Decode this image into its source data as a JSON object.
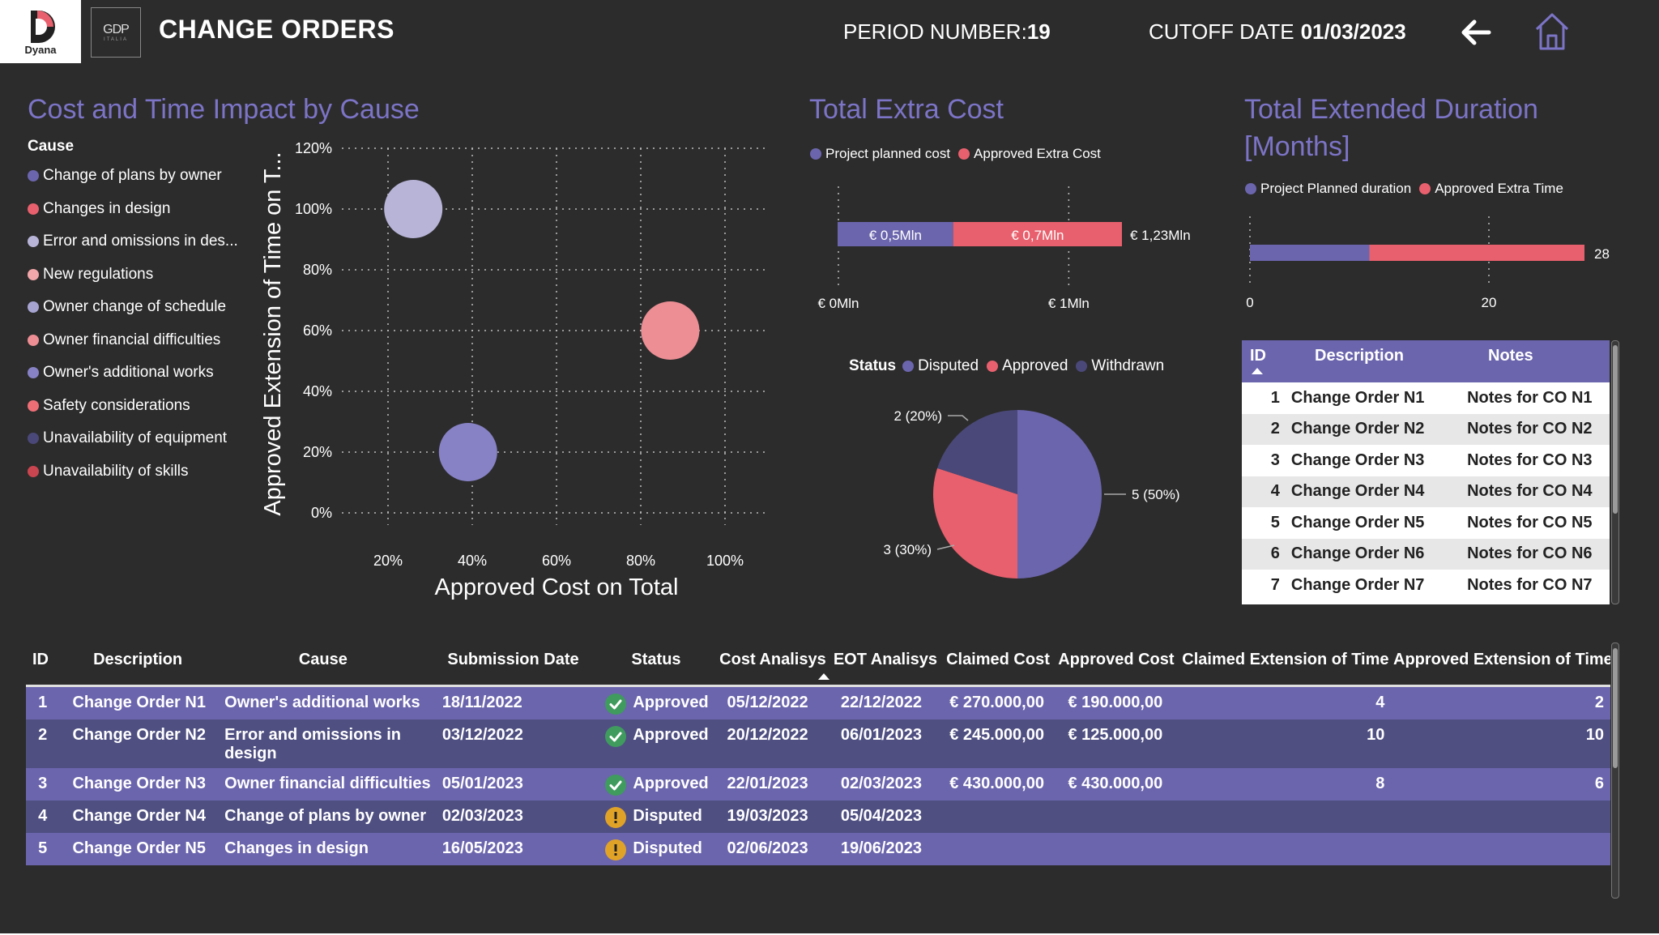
{
  "header": {
    "logo_text": "Dyana",
    "partner_logo": "GDP",
    "partner_sub": "ITALIA",
    "title": "CHANGE ORDERS",
    "period_label": "PERIOD NUMBER:",
    "period_value": "19",
    "cutoff_label": "CUTOFF DATE",
    "cutoff_value": "01/03/2023"
  },
  "icons": {
    "back": "arrow-left-icon",
    "home": "home-icon"
  },
  "colors": {
    "purple": "#6b65ad",
    "red": "#e8606d",
    "lavender": "#b7b4d8",
    "pink": "#ec8e94",
    "darkpurple": "#4a4878",
    "title": "#7c74c6"
  },
  "bubble_chart": {
    "title": "Cost and Time Impact by Cause",
    "legend_title": "Cause",
    "causes": [
      {
        "label": "Change of plans by owner",
        "color": "#6b65ad"
      },
      {
        "label": "Changes in design",
        "color": "#e8606d"
      },
      {
        "label": "Error and omissions in des...",
        "color": "#b7b4d8"
      },
      {
        "label": "New regulations",
        "color": "#f2a7aa"
      },
      {
        "label": "Owner change of schedule",
        "color": "#a7a4d2"
      },
      {
        "label": "Owner financial difficulties",
        "color": "#ec8e94"
      },
      {
        "label": "Owner's additional works",
        "color": "#8782c6"
      },
      {
        "label": "Safety considerations",
        "color": "#ee6e76"
      },
      {
        "label": "Unavailability of equipment",
        "color": "#4a4878"
      },
      {
        "label": "Unavailability of skills",
        "color": "#c9454f"
      }
    ],
    "xlabel": "Approved Cost on Total",
    "ylabel": "Approved Extension of Time on T...",
    "x_ticks": [
      "20%",
      "40%",
      "60%",
      "80%",
      "100%"
    ],
    "y_ticks": [
      "0%",
      "20%",
      "40%",
      "60%",
      "80%",
      "100%",
      "120%"
    ]
  },
  "extra_cost": {
    "title": "Total Extra Cost",
    "legend": [
      "Project planned cost",
      "Approved Extra Cost"
    ],
    "seg1_label": "€ 0,5Mln",
    "seg2_label": "€ 0,7Mln",
    "total_label": "€ 1,23Mln",
    "axis": [
      "€ 0Mln",
      "€ 1Mln"
    ]
  },
  "extended_duration": {
    "title_line1": "Total Extended Duration",
    "title_line2": "[Months]",
    "legend": [
      "Project Planned duration",
      "Approved Extra Time"
    ],
    "total_label": "28",
    "axis": [
      "0",
      "20"
    ]
  },
  "status_pie": {
    "legend_title": "Status",
    "legend": [
      "Disputed",
      "Approved",
      "Withdrawn"
    ],
    "label_disputed": "5 (50%)",
    "label_approved": "3 (30%)",
    "label_withdrawn": "2 (20%)"
  },
  "notes_table": {
    "headers": [
      "ID",
      "Description",
      "Notes"
    ],
    "rows": [
      [
        "1",
        "Change Order N1",
        "Notes for CO N1"
      ],
      [
        "2",
        "Change Order N2",
        "Notes for CO N2"
      ],
      [
        "3",
        "Change Order N3",
        "Notes for CO N3"
      ],
      [
        "4",
        "Change Order N4",
        "Notes for CO N4"
      ],
      [
        "5",
        "Change Order N5",
        "Notes for CO N5"
      ],
      [
        "6",
        "Change Order N6",
        "Notes for CO N6"
      ],
      [
        "7",
        "Change Order N7",
        "Notes for CO N7"
      ]
    ]
  },
  "main_table": {
    "headers": [
      "ID",
      "Description",
      "Cause",
      "Submission Date",
      "Status",
      "Cost Analisys",
      "EOT Analisys",
      "Claimed Cost",
      "Approved Cost",
      "Claimed Extension of Time",
      "Approved Extension of Time"
    ],
    "rows": [
      {
        "id": "1",
        "desc": "Change Order N1",
        "cause": "Owner's additional works",
        "sub": "18/11/2022",
        "status": "Approved",
        "cost_an": "05/12/2022",
        "eot_an": "22/12/2022",
        "claimed": "€ 270.000,00",
        "approved": "€ 190.000,00",
        "claimed_eot": "4",
        "approved_eot": "2"
      },
      {
        "id": "2",
        "desc": "Change Order N2",
        "cause": "Error and omissions in design",
        "sub": "03/12/2022",
        "status": "Approved",
        "cost_an": "20/12/2022",
        "eot_an": "06/01/2023",
        "claimed": "€ 245.000,00",
        "approved": "€ 125.000,00",
        "claimed_eot": "10",
        "approved_eot": "10"
      },
      {
        "id": "3",
        "desc": "Change Order N3",
        "cause": "Owner financial difficulties",
        "sub": "05/01/2023",
        "status": "Approved",
        "cost_an": "22/01/2023",
        "eot_an": "02/03/2023",
        "claimed": "€ 430.000,00",
        "approved": "€ 430.000,00",
        "claimed_eot": "8",
        "approved_eot": "6"
      },
      {
        "id": "4",
        "desc": "Change Order N4",
        "cause": "Change of plans by owner",
        "sub": "02/03/2023",
        "status": "Disputed",
        "cost_an": "19/03/2023",
        "eot_an": "05/04/2023",
        "claimed": "",
        "approved": "",
        "claimed_eot": "",
        "approved_eot": ""
      },
      {
        "id": "5",
        "desc": "Change Order N5",
        "cause": "Changes in design",
        "sub": "16/05/2023",
        "status": "Disputed",
        "cost_an": "02/06/2023",
        "eot_an": "19/06/2023",
        "claimed": "",
        "approved": "",
        "claimed_eot": "",
        "approved_eot": ""
      }
    ]
  },
  "chart_data": [
    {
      "type": "scatter",
      "title": "Cost and Time Impact by Cause",
      "xlabel": "Approved Cost on Total",
      "ylabel": "Approved Extension of Time on T...",
      "xlim": [
        10,
        110
      ],
      "ylim": [
        0,
        120
      ],
      "series": [
        {
          "name": "Error and omissions in des...",
          "x": [
            26
          ],
          "y": [
            100
          ]
        },
        {
          "name": "Owner financial difficulties",
          "x": [
            87
          ],
          "y": [
            60
          ]
        },
        {
          "name": "Owner's additional works",
          "x": [
            39
          ],
          "y": [
            20
          ]
        }
      ]
    },
    {
      "type": "bar",
      "title": "Total Extra Cost",
      "categories": [
        "Total"
      ],
      "series": [
        {
          "name": "Project planned cost",
          "values": [
            0.5
          ]
        },
        {
          "name": "Approved Extra Cost",
          "values": [
            0.7
          ]
        }
      ],
      "total": 1.23,
      "xlim": [
        0,
        1.23
      ]
    },
    {
      "type": "bar",
      "title": "Total Extended Duration [Months]",
      "categories": [
        "Total"
      ],
      "series": [
        {
          "name": "Project Planned duration",
          "values": [
            10
          ]
        },
        {
          "name": "Approved Extra Time",
          "values": [
            18
          ]
        }
      ],
      "total": 28,
      "xlim": [
        0,
        28
      ]
    },
    {
      "type": "pie",
      "categories": [
        "Disputed",
        "Approved",
        "Withdrawn"
      ],
      "values": [
        5,
        3,
        2
      ]
    }
  ]
}
